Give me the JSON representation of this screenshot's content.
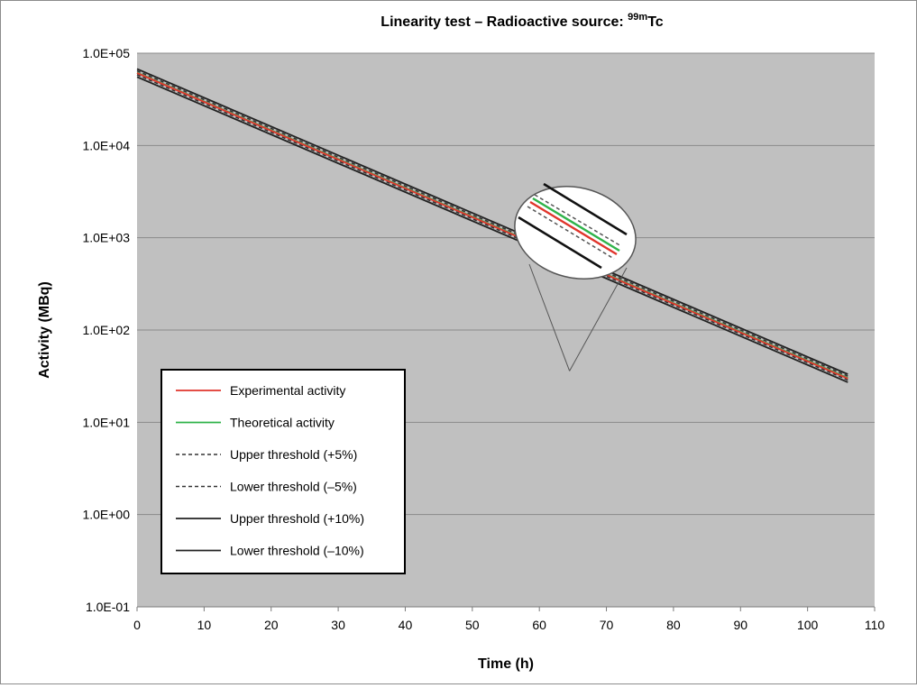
{
  "chart_data": {
    "type": "line",
    "title": "Linearity test – Radioactive source: ",
    "title_superscript": "99m",
    "title_suffix": "Tc",
    "xlabel": "Time  (h)",
    "ylabel": "Activity (MBq)",
    "xlim": [
      0,
      110
    ],
    "ylim": [
      0.1,
      100000
    ],
    "y_scale": "log",
    "x_ticks": [
      "0",
      "10",
      "20",
      "30",
      "40",
      "50",
      "60",
      "70",
      "80",
      "90",
      "100",
      "110"
    ],
    "y_ticks": [
      "1.0E-01",
      "1.0E+00",
      "1.0E+01",
      "1.0E+02",
      "1.0E+03",
      "1.0E+04",
      "1.0E+05"
    ],
    "grid": "horizontal",
    "plot_background": "#c0c0c0",
    "legend_position": "lower-left",
    "series": [
      {
        "name": "Experimental activity",
        "color": "#e0352b",
        "style": "solid",
        "x": [
          0,
          106
        ],
        "y": [
          61000,
          29.8
        ]
      },
      {
        "name": "Theoretical activity",
        "color": "#2fb34a",
        "style": "solid",
        "x": [
          0,
          106
        ],
        "y": [
          61500,
          30.2
        ]
      },
      {
        "name": "Upper threshold (+5%)",
        "color": "#333333",
        "style": "dashed",
        "x": [
          0,
          106
        ],
        "y": [
          64500,
          31.7
        ]
      },
      {
        "name": "Lower threshold (–5%)",
        "color": "#333333",
        "style": "dashed",
        "x": [
          0,
          106
        ],
        "y": [
          58400,
          28.7
        ]
      },
      {
        "name": "Upper threshold (+10%)",
        "color": "#222222",
        "style": "solid",
        "x": [
          0,
          106
        ],
        "y": [
          67600,
          33.2
        ]
      },
      {
        "name": "Lower threshold (–10%)",
        "color": "#222222",
        "style": "solid",
        "x": [
          0,
          106
        ],
        "y": [
          55300,
          27.2
        ]
      }
    ],
    "annotation": "magnified inset showing the series lines"
  }
}
